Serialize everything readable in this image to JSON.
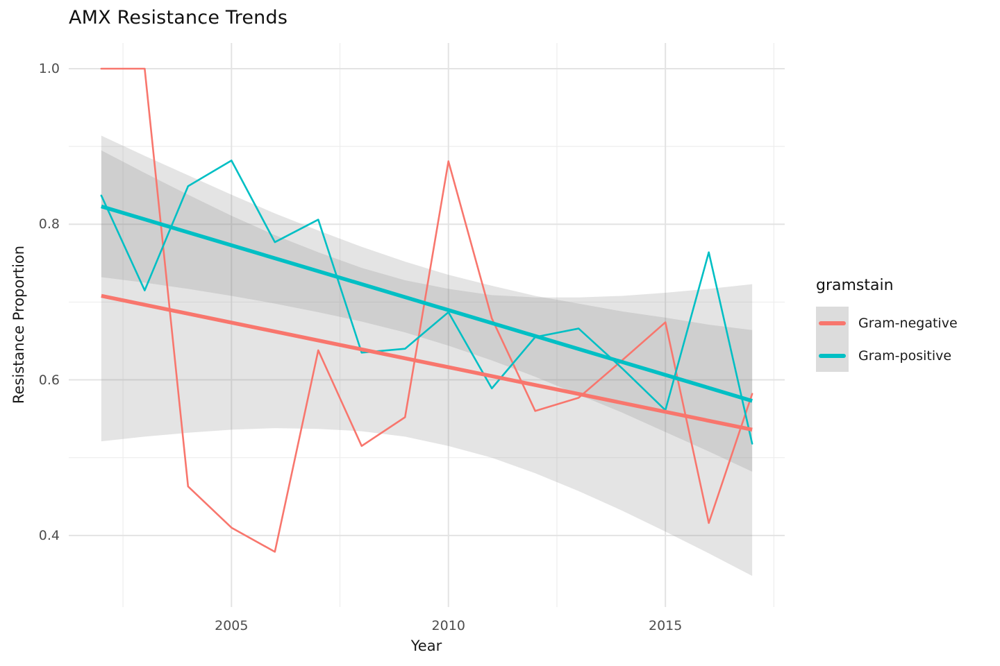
{
  "title": "AMX Resistance Trends",
  "axes": {
    "x": {
      "label": "Year",
      "domain": [
        2001.25,
        2017.75
      ],
      "major_ticks": [
        {
          "label": "2005",
          "value": 2005
        },
        {
          "label": "2010",
          "value": 2010
        },
        {
          "label": "2015",
          "value": 2015
        }
      ],
      "minor_ticks": [
        2002.5,
        2007.5,
        2012.5,
        2017.5
      ]
    },
    "y": {
      "label": "Resistance Proportion",
      "domain": [
        0.308,
        1.033
      ],
      "major_ticks": [
        {
          "label": "1.0",
          "value": 1.0
        },
        {
          "label": "0.8",
          "value": 0.8
        },
        {
          "label": "0.6",
          "value": 0.6
        },
        {
          "label": "0.4",
          "value": 0.4
        }
      ],
      "minor_ticks": [
        0.9,
        0.7,
        0.5
      ]
    }
  },
  "legend": {
    "title": "gramstain",
    "entries": [
      {
        "label": "Gram-negative",
        "color": "#F8766D"
      },
      {
        "label": "Gram-positive",
        "color": "#00BFC4"
      }
    ]
  },
  "style": {
    "grid_major_color": "#e3e3e3",
    "grid_minor_color": "#ededed",
    "ribbon_fill": "rgba(133,133,133,0.22)",
    "data_line_width": 2.6,
    "trend_line_width": 5.5,
    "grid_major_width": 2,
    "grid_minor_width": 1.2
  },
  "chart_data": {
    "type": "line",
    "title": "AMX Resistance Trends",
    "xlabel": "Year",
    "ylabel": "Resistance Proportion",
    "x": [
      2002,
      2003,
      2004,
      2005,
      2006,
      2007,
      2008,
      2009,
      2010,
      2011,
      2012,
      2013,
      2014,
      2015,
      2016,
      2017
    ],
    "xlim": [
      2001.25,
      2017.75
    ],
    "ylim": [
      0.308,
      1.033
    ],
    "grid": true,
    "legend_position": "right",
    "series": [
      {
        "name": "Gram-negative",
        "color": "#F8766D",
        "values": [
          1.0,
          1.0,
          0.463,
          0.41,
          0.379,
          0.638,
          0.515,
          0.552,
          0.881,
          0.679,
          0.56,
          0.577,
          0.625,
          0.674,
          0.416,
          0.582
        ],
        "trend": {
          "x": [
            2002,
            2017
          ],
          "y": [
            0.708,
            0.536
          ]
        },
        "ci_upper": [
          0.895,
          0.866,
          0.838,
          0.811,
          0.786,
          0.764,
          0.744,
          0.728,
          0.717,
          0.709,
          0.706,
          0.706,
          0.708,
          0.712,
          0.717,
          0.723
        ],
        "ci_lower": [
          0.521,
          0.527,
          0.532,
          0.536,
          0.538,
          0.537,
          0.534,
          0.527,
          0.515,
          0.5,
          0.48,
          0.457,
          0.432,
          0.405,
          0.377,
          0.348
        ]
      },
      {
        "name": "Gram-positive",
        "color": "#00BFC4",
        "values": [
          0.837,
          0.715,
          0.849,
          0.882,
          0.777,
          0.806,
          0.635,
          0.64,
          0.687,
          0.589,
          0.655,
          0.666,
          0.615,
          0.561,
          0.764,
          0.518
        ],
        "trend": {
          "x": [
            2002,
            2017
          ],
          "y": [
            0.823,
            0.573
          ]
        },
        "ci_upper": [
          0.914,
          0.888,
          0.863,
          0.838,
          0.814,
          0.792,
          0.771,
          0.752,
          0.735,
          0.721,
          0.708,
          0.698,
          0.688,
          0.68,
          0.671,
          0.664
        ],
        "ci_lower": [
          0.732,
          0.725,
          0.717,
          0.708,
          0.698,
          0.687,
          0.675,
          0.661,
          0.644,
          0.625,
          0.604,
          0.581,
          0.558,
          0.533,
          0.508,
          0.482
        ]
      }
    ]
  }
}
